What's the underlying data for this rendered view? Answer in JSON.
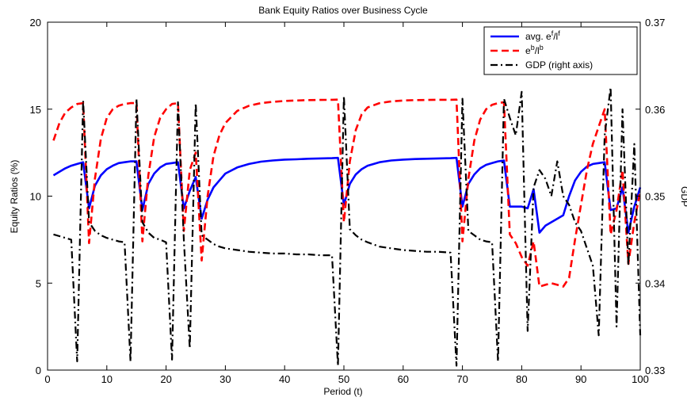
{
  "chart_data": {
    "type": "line",
    "title": "Bank Equity Ratios over Business Cycle",
    "xlabel": "Period (t)",
    "ylabel": "Equity Ratios (%)",
    "y2label": "GDP",
    "xlim": [
      0,
      100
    ],
    "ylim": [
      0,
      20
    ],
    "y2lim": [
      0.33,
      0.37
    ],
    "xticks": [
      0,
      10,
      20,
      30,
      40,
      50,
      60,
      70,
      80,
      90,
      100
    ],
    "yticks": [
      0,
      5,
      10,
      15,
      20
    ],
    "y2ticks": [
      "0.33",
      "0.34",
      "0.35",
      "0.36",
      "0.37"
    ],
    "grid": false,
    "legend_position": "top-right",
    "legend": [
      {
        "text": "avg. e",
        "sup1": "f",
        "mid": "/l",
        "sup2": "f"
      },
      {
        "text": "e",
        "sup1": "b",
        "mid": "/l",
        "sup2": "b"
      },
      {
        "text": "GDP (right axis)",
        "sup1": "",
        "mid": "",
        "sup2": ""
      }
    ],
    "series": [
      {
        "key": "avg_ef_lf",
        "axis": "left",
        "color": "#0000ff",
        "style": "solid",
        "x": [
          1,
          2,
          3,
          4,
          5,
          6,
          7,
          8,
          9,
          10,
          11,
          12,
          13,
          14,
          15,
          16,
          17,
          18,
          19,
          20,
          21,
          22,
          23,
          24,
          25,
          26,
          27,
          28,
          29,
          30,
          32,
          34,
          36,
          38,
          40,
          42,
          44,
          46,
          48,
          49,
          50,
          51,
          52,
          53,
          54,
          56,
          58,
          60,
          62,
          64,
          66,
          68,
          69,
          70,
          71,
          72,
          73,
          74,
          75,
          76,
          77,
          78,
          79,
          80,
          81,
          82,
          83,
          84,
          85,
          86,
          87,
          88,
          89,
          90,
          91,
          92,
          93,
          94,
          95,
          96,
          97,
          98,
          99,
          100
        ],
        "y": [
          11.2,
          11.4,
          11.6,
          11.75,
          11.85,
          11.95,
          9.3,
          10.6,
          11.2,
          11.55,
          11.75,
          11.9,
          11.95,
          12.0,
          12.0,
          9.2,
          10.7,
          11.3,
          11.65,
          11.85,
          11.9,
          11.95,
          9.3,
          10.3,
          11.1,
          8.7,
          9.8,
          10.5,
          10.9,
          11.3,
          11.65,
          11.85,
          11.98,
          12.05,
          12.1,
          12.12,
          12.15,
          12.17,
          12.18,
          12.2,
          9.5,
          10.7,
          11.25,
          11.55,
          11.75,
          11.95,
          12.05,
          12.1,
          12.13,
          12.15,
          12.17,
          12.18,
          12.2,
          9.4,
          10.7,
          11.25,
          11.6,
          11.8,
          11.9,
          12.0,
          12.05,
          9.4,
          9.4,
          9.4,
          9.3,
          10.4,
          7.9,
          8.3,
          8.5,
          8.7,
          8.9,
          10.0,
          10.9,
          11.4,
          11.7,
          11.85,
          11.9,
          11.95,
          9.2,
          9.3,
          10.5,
          7.9,
          9.4,
          10.5
        ]
      },
      {
        "key": "eb_lb",
        "axis": "left",
        "color": "#ff0000",
        "style": "dashed",
        "x": [
          1,
          2,
          3,
          4,
          5,
          6,
          7,
          8,
          9,
          10,
          11,
          12,
          13,
          14,
          15,
          16,
          17,
          18,
          19,
          20,
          21,
          22,
          23,
          24,
          25,
          26,
          27,
          28,
          29,
          30,
          32,
          34,
          36,
          38,
          40,
          42,
          44,
          46,
          48,
          49,
          50,
          51,
          52,
          53,
          54,
          56,
          58,
          60,
          62,
          64,
          66,
          68,
          69,
          70,
          71,
          72,
          73,
          74,
          75,
          76,
          77,
          78,
          79,
          80,
          81,
          82,
          83,
          84,
          85,
          86,
          87,
          88,
          89,
          90,
          91,
          92,
          93,
          94,
          95,
          96,
          97,
          98,
          99,
          100
        ],
        "y": [
          13.2,
          14.2,
          14.8,
          15.1,
          15.3,
          15.35,
          7.3,
          11.0,
          13.3,
          14.5,
          15.0,
          15.2,
          15.3,
          15.35,
          15.35,
          7.4,
          11.2,
          13.4,
          14.5,
          15.0,
          15.3,
          15.35,
          8.0,
          11.5,
          12.5,
          6.3,
          10.0,
          12.3,
          13.5,
          14.2,
          14.9,
          15.2,
          15.35,
          15.42,
          15.47,
          15.5,
          15.52,
          15.53,
          15.54,
          15.55,
          8.5,
          12.0,
          13.8,
          14.7,
          15.1,
          15.35,
          15.45,
          15.5,
          15.52,
          15.53,
          15.54,
          15.54,
          15.55,
          7.4,
          11.0,
          13.2,
          14.4,
          15.0,
          15.25,
          15.35,
          15.4,
          7.8,
          7.3,
          6.5,
          6.0,
          7.4,
          4.8,
          4.9,
          5.0,
          4.9,
          4.8,
          5.3,
          7.5,
          9.5,
          11.5,
          13.0,
          14.0,
          15.0,
          7.8,
          9.2,
          11.5,
          6.1,
          8.5,
          10.3
        ]
      },
      {
        "key": "gdp",
        "axis": "right",
        "color": "#000000",
        "style": "dashdot",
        "x": [
          1,
          2,
          3,
          4,
          5,
          6,
          7,
          8,
          9,
          10,
          11,
          12,
          13,
          14,
          15,
          16,
          17,
          18,
          19,
          20,
          21,
          22,
          23,
          24,
          25,
          26,
          27,
          28,
          29,
          30,
          32,
          34,
          36,
          38,
          40,
          42,
          44,
          46,
          48,
          49,
          50,
          51,
          52,
          53,
          54,
          56,
          58,
          60,
          62,
          64,
          66,
          68,
          69,
          70,
          71,
          72,
          73,
          74,
          75,
          76,
          77,
          78,
          79,
          80,
          81,
          82,
          83,
          84,
          85,
          86,
          87,
          88,
          89,
          90,
          91,
          92,
          93,
          94,
          95,
          96,
          97,
          98,
          99,
          100
        ],
        "y": [
          0.3456,
          0.3454,
          0.3452,
          0.345,
          0.331,
          0.361,
          0.347,
          0.346,
          0.3455,
          0.3452,
          0.345,
          0.3448,
          0.3447,
          0.331,
          0.3612,
          0.347,
          0.3458,
          0.3452,
          0.345,
          0.3447,
          0.3312,
          0.3608,
          0.345,
          0.3325,
          0.3607,
          0.3455,
          0.345,
          0.3445,
          0.3442,
          0.344,
          0.3438,
          0.3436,
          0.3435,
          0.3434,
          0.3434,
          0.3433,
          0.3433,
          0.3432,
          0.3432,
          0.3305,
          0.3615,
          0.3462,
          0.3455,
          0.345,
          0.3447,
          0.3442,
          0.344,
          0.3438,
          0.3437,
          0.3436,
          0.3436,
          0.3435,
          0.3305,
          0.3612,
          0.346,
          0.3455,
          0.345,
          0.3448,
          0.3447,
          0.331,
          0.3612,
          0.359,
          0.357,
          0.362,
          0.3345,
          0.351,
          0.353,
          0.352,
          0.35,
          0.354,
          0.35,
          0.349,
          0.347,
          0.346,
          0.344,
          0.342,
          0.334,
          0.357,
          0.3625,
          0.335,
          0.36,
          0.342,
          0.356,
          0.334
        ]
      }
    ]
  }
}
